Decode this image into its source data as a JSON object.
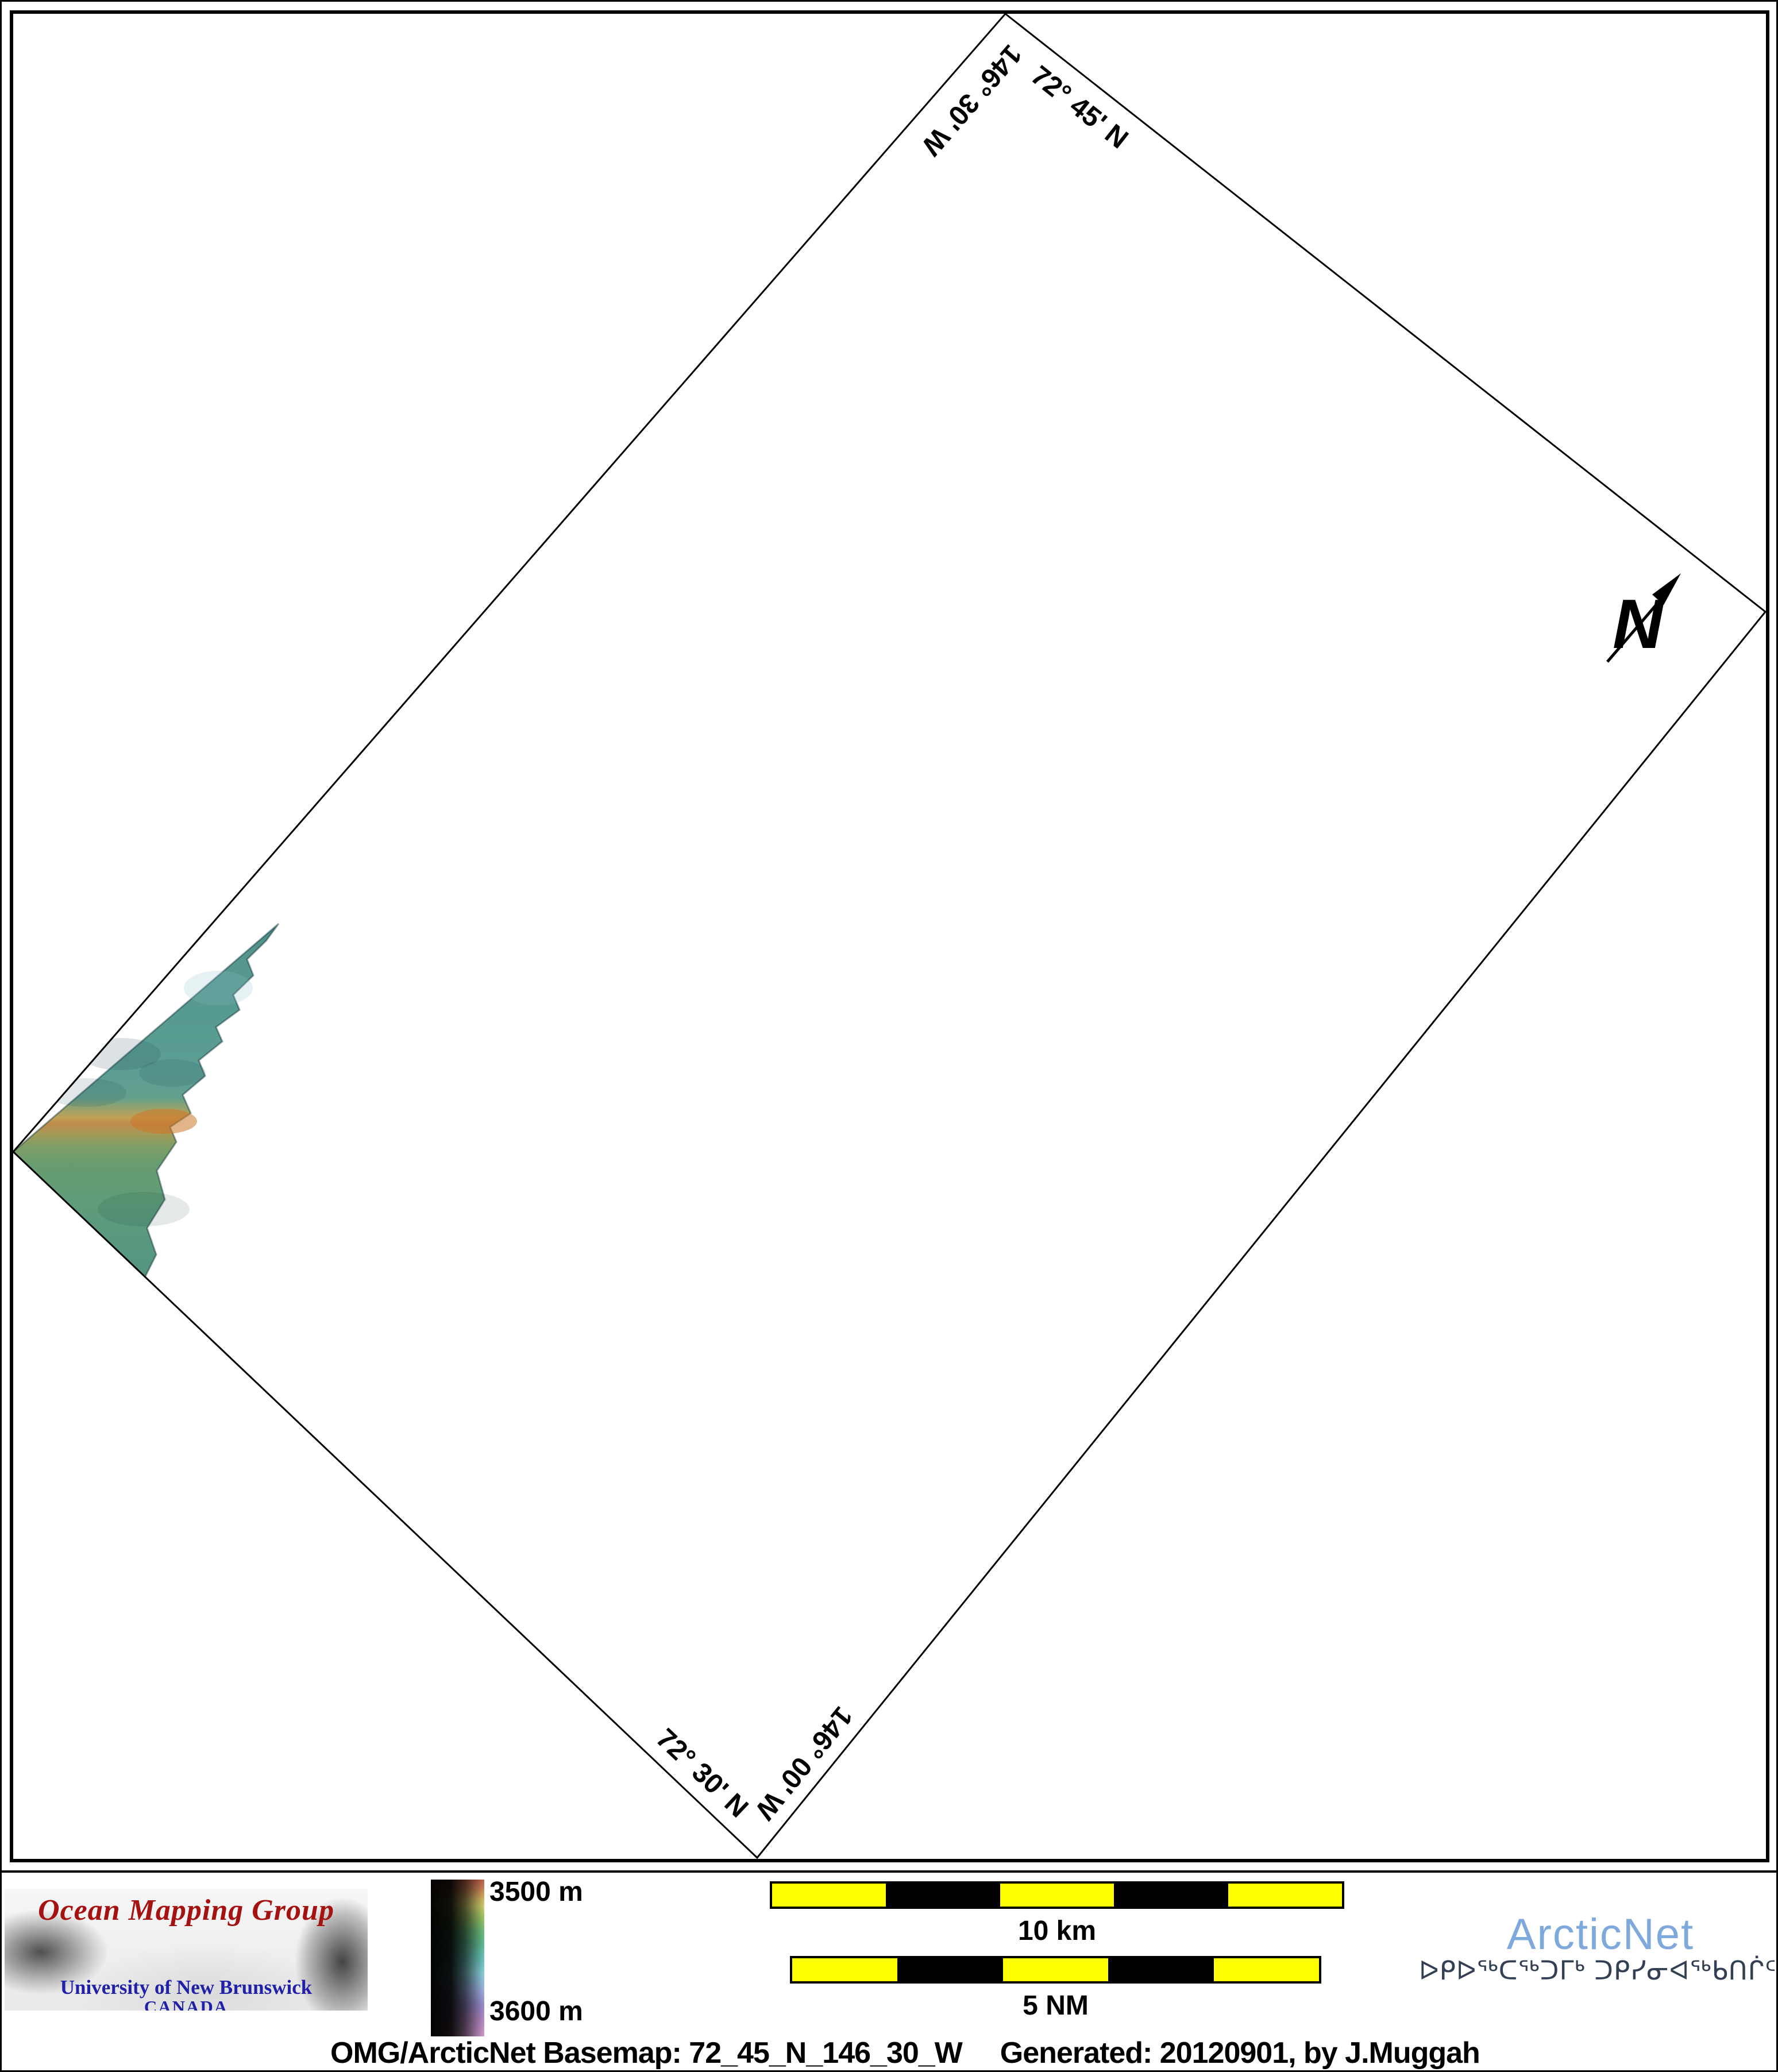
{
  "map": {
    "corner_labels": {
      "top_meridian": "146° 30' W",
      "top_parallel": "72° 45' N",
      "bottom_parallel": "72° 30' N",
      "bottom_meridian": "146° 00' W"
    },
    "north_arrow_label": "N"
  },
  "legend": {
    "depth_scale": {
      "top": "3500 m",
      "bottom": "3600 m"
    },
    "scale_bar_km": {
      "label": "10 km",
      "segments": [
        "#ffff00",
        "#000000",
        "#ffff00",
        "#000000",
        "#ffff00"
      ]
    },
    "scale_bar_nm": {
      "label": "5 NM",
      "segments": [
        "#ffff00",
        "#000000",
        "#ffff00",
        "#000000",
        "#ffff00"
      ]
    }
  },
  "branding": {
    "omg": {
      "title": "Ocean Mapping Group",
      "university": "University of New Brunswick",
      "country": "CANADA"
    },
    "arcticnet": {
      "name": "ArcticNet",
      "inuktitut": "ᐅᑭᐅᖅᑕᖅᑐᒥᒃ ᑐᑭᓯᓂᐊᖅᑲᑎᒌᑦ"
    }
  },
  "caption": {
    "basemap": "OMG/ArcticNet Basemap: 72_45_N_146_30_W",
    "generated": "Generated: 20120901, by J.Muggah"
  },
  "colors": {
    "scale_bar_yellow": "#ffff00",
    "arcticnet_blue": "#7fa9dc",
    "inuktitut_navy": "#333f52",
    "omg_red": "#a51212",
    "unb_blue": "#2020a8",
    "depth_scale_top": "#c4604e",
    "depth_scale_bottom": "#d49cd2",
    "swath_teal": "#55978b",
    "swath_orange": "#c48a4a"
  }
}
